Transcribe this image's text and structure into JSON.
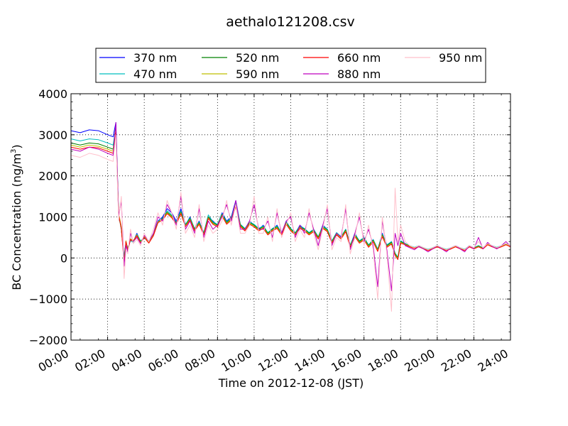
{
  "chart_data": {
    "type": "line",
    "title": "aethalo121208.csv",
    "xlabel": "Time on 2012-12-08 (JST)",
    "ylabel_main": "BC Concentration (ng/m",
    "ylabel_sup": "3",
    "ylabel_close": ")",
    "xlim": [
      0,
      24
    ],
    "ylim": [
      -2000,
      4000
    ],
    "x_ticks": [
      0,
      2,
      4,
      6,
      8,
      10,
      12,
      14,
      16,
      18,
      20,
      22,
      24
    ],
    "x_tick_labels": [
      "00:00",
      "02:00",
      "04:00",
      "06:00",
      "08:00",
      "10:00",
      "12:00",
      "14:00",
      "16:00",
      "18:00",
      "20:00",
      "22:00",
      "24:00"
    ],
    "y_ticks": [
      -2000,
      -1000,
      0,
      1000,
      2000,
      3000,
      4000
    ],
    "y_tick_labels": [
      "−2000",
      "−1000",
      "0",
      "1000",
      "2000",
      "3000",
      "4000"
    ],
    "grid": true,
    "legend_position": "top",
    "series": [
      {
        "name": "370 nm",
        "color": "#0000ff"
      },
      {
        "name": "470 nm",
        "color": "#00bfbf"
      },
      {
        "name": "520 nm",
        "color": "#008000"
      },
      {
        "name": "590 nm",
        "color": "#bfbf00"
      },
      {
        "name": "660 nm",
        "color": "#ff0000"
      },
      {
        "name": "880 nm",
        "color": "#bf00bf"
      },
      {
        "name": "950 nm",
        "color": "#ffc0cb"
      }
    ],
    "x": [
      0,
      0.5,
      1,
      1.5,
      2,
      2.3,
      2.45,
      2.6,
      2.75,
      2.9,
      3.0,
      3.1,
      3.25,
      3.4,
      3.6,
      3.8,
      4.0,
      4.25,
      4.5,
      4.75,
      5.0,
      5.25,
      5.5,
      5.75,
      6.0,
      6.25,
      6.5,
      6.75,
      7.0,
      7.25,
      7.5,
      7.75,
      8.0,
      8.25,
      8.5,
      8.75,
      9.0,
      9.25,
      9.5,
      9.75,
      10.0,
      10.25,
      10.5,
      10.75,
      11.0,
      11.25,
      11.5,
      11.75,
      12.0,
      12.25,
      12.5,
      12.75,
      13.0,
      13.25,
      13.5,
      13.75,
      14.0,
      14.25,
      14.5,
      14.75,
      15.0,
      15.25,
      15.5,
      15.75,
      16.0,
      16.25,
      16.5,
      16.75,
      17.0,
      17.25,
      17.5,
      17.7,
      17.85,
      18.0,
      18.25,
      18.5,
      18.75,
      19.0,
      19.25,
      19.5,
      19.75,
      20.0,
      20.25,
      20.5,
      20.75,
      21.0,
      21.25,
      21.5,
      21.75,
      22.0,
      22.25,
      22.5,
      22.75,
      23.0,
      23.25,
      23.5,
      23.75,
      24.0
    ],
    "values": {
      "370 nm": [
        3100,
        3050,
        3120,
        3100,
        3000,
        2950,
        3300,
        1100,
        700,
        0,
        400,
        200,
        450,
        400,
        600,
        400,
        500,
        400,
        600,
        900,
        1000,
        1200,
        1100,
        900,
        1200,
        800,
        1000,
        700,
        900,
        600,
        1000,
        900,
        800,
        1100,
        900,
        1000,
        1400,
        800,
        700,
        900,
        800,
        700,
        800,
        600,
        700,
        800,
        600,
        900,
        700,
        600,
        800,
        700,
        600,
        700,
        500,
        800,
        700,
        400,
        600,
        500,
        700,
        300,
        600,
        400,
        500,
        300,
        450,
        200,
        600,
        300,
        400,
        100,
        0,
        400,
        350,
        300,
        250,
        300,
        250,
        200,
        250,
        300,
        250,
        200,
        250,
        300,
        250,
        200,
        300,
        250,
        300,
        250,
        350,
        300,
        250,
        300,
        350,
        300
      ],
      "470 nm": [
        2900,
        2850,
        2900,
        2880,
        2800,
        2750,
        3200,
        1000,
        750,
        50,
        380,
        250,
        420,
        380,
        580,
        420,
        480,
        420,
        580,
        880,
        980,
        1150,
        1050,
        880,
        1150,
        820,
        980,
        720,
        880,
        620,
        1050,
        880,
        820,
        1080,
        880,
        980,
        1350,
        820,
        720,
        880,
        820,
        720,
        780,
        620,
        720,
        780,
        620,
        880,
        720,
        620,
        780,
        720,
        620,
        700,
        520,
        780,
        700,
        420,
        620,
        520,
        700,
        320,
        580,
        420,
        500,
        320,
        450,
        220,
        580,
        320,
        400,
        120,
        20,
        420,
        350,
        300,
        260,
        300,
        250,
        210,
        250,
        300,
        250,
        210,
        250,
        300,
        250,
        210,
        300,
        250,
        300,
        250,
        350,
        300,
        260,
        300,
        350,
        300
      ],
      "520 nm": [
        2800,
        2750,
        2800,
        2780,
        2700,
        2650,
        3150,
        1050,
        700,
        -50,
        400,
        220,
        450,
        400,
        560,
        400,
        500,
        400,
        560,
        860,
        960,
        1120,
        1020,
        860,
        1120,
        800,
        960,
        700,
        860,
        600,
        1000,
        860,
        800,
        1060,
        860,
        960,
        1300,
        800,
        700,
        860,
        800,
        700,
        760,
        600,
        700,
        760,
        600,
        860,
        700,
        600,
        760,
        700,
        600,
        680,
        500,
        760,
        680,
        400,
        600,
        500,
        680,
        300,
        560,
        400,
        480,
        300,
        430,
        200,
        560,
        300,
        380,
        100,
        0,
        400,
        340,
        290,
        250,
        290,
        240,
        200,
        240,
        290,
        240,
        200,
        240,
        290,
        240,
        200,
        290,
        240,
        290,
        240,
        340,
        290,
        250,
        290,
        340,
        290
      ],
      "590 nm": [
        2750,
        2700,
        2750,
        2720,
        2650,
        2600,
        3100,
        1100,
        750,
        -100,
        420,
        200,
        470,
        420,
        560,
        380,
        520,
        380,
        560,
        880,
        940,
        1100,
        1000,
        840,
        1100,
        780,
        940,
        680,
        840,
        580,
        980,
        840,
        780,
        1040,
        840,
        940,
        1280,
        780,
        680,
        840,
        780,
        680,
        740,
        580,
        680,
        740,
        580,
        840,
        680,
        580,
        740,
        680,
        580,
        660,
        480,
        740,
        660,
        380,
        580,
        480,
        660,
        280,
        540,
        380,
        460,
        280,
        410,
        180,
        540,
        280,
        360,
        80,
        -20,
        380,
        330,
        280,
        240,
        280,
        230,
        190,
        230,
        280,
        230,
        190,
        230,
        280,
        230,
        190,
        280,
        230,
        280,
        230,
        330,
        280,
        240,
        280,
        330,
        280
      ],
      "660 nm": [
        2700,
        2650,
        2700,
        2680,
        2600,
        2550,
        3050,
        1050,
        720,
        -150,
        400,
        180,
        450,
        400,
        540,
        360,
        500,
        360,
        540,
        860,
        920,
        1080,
        980,
        820,
        1080,
        760,
        920,
        660,
        820,
        560,
        960,
        820,
        760,
        1020,
        820,
        920,
        1250,
        760,
        660,
        820,
        760,
        660,
        720,
        560,
        660,
        720,
        560,
        820,
        660,
        560,
        720,
        660,
        560,
        640,
        460,
        720,
        640,
        360,
        560,
        460,
        640,
        260,
        520,
        360,
        440,
        260,
        390,
        160,
        520,
        260,
        340,
        60,
        -40,
        360,
        320,
        270,
        230,
        270,
        220,
        180,
        220,
        270,
        220,
        180,
        220,
        270,
        220,
        180,
        270,
        220,
        270,
        220,
        320,
        270,
        230,
        270,
        320,
        270
      ],
      "880 nm": [
        2650,
        2600,
        2700,
        2650,
        2550,
        2500,
        3300,
        1000,
        1400,
        -200,
        300,
        150,
        600,
        400,
        500,
        350,
        550,
        400,
        600,
        1000,
        900,
        1300,
        1100,
        800,
        1500,
        700,
        900,
        600,
        1200,
        500,
        900,
        700,
        800,
        1000,
        1300,
        900,
        1400,
        700,
        700,
        900,
        1300,
        700,
        700,
        900,
        500,
        1100,
        600,
        900,
        1000,
        500,
        800,
        600,
        1100,
        700,
        300,
        800,
        1200,
        300,
        600,
        500,
        1200,
        200,
        600,
        1000,
        400,
        700,
        300,
        -700,
        900,
        200,
        -800,
        600,
        300,
        600,
        300,
        250,
        200,
        280,
        220,
        150,
        220,
        300,
        220,
        150,
        250,
        300,
        220,
        150,
        300,
        220,
        500,
        220,
        380,
        280,
        220,
        300,
        400,
        280
      ],
      "950 nm": [
        2500,
        2450,
        2550,
        2500,
        2400,
        2350,
        3000,
        900,
        1500,
        -500,
        200,
        100,
        700,
        350,
        450,
        300,
        600,
        400,
        700,
        1100,
        800,
        1400,
        1100,
        700,
        1600,
        600,
        800,
        500,
        1300,
        400,
        800,
        600,
        700,
        900,
        1400,
        800,
        1300,
        600,
        600,
        800,
        1500,
        600,
        600,
        1000,
        400,
        1200,
        500,
        800,
        1100,
        400,
        700,
        500,
        1200,
        600,
        200,
        700,
        1300,
        200,
        500,
        400,
        1300,
        100,
        500,
        1100,
        300,
        800,
        200,
        -1000,
        1000,
        100,
        -1300,
        1700,
        400,
        800,
        400,
        300,
        250,
        300,
        250,
        200,
        250,
        300,
        250,
        200,
        250,
        300,
        250,
        200,
        300,
        250,
        400,
        250,
        350,
        300,
        250,
        300,
        350,
        300
      ]
    }
  }
}
